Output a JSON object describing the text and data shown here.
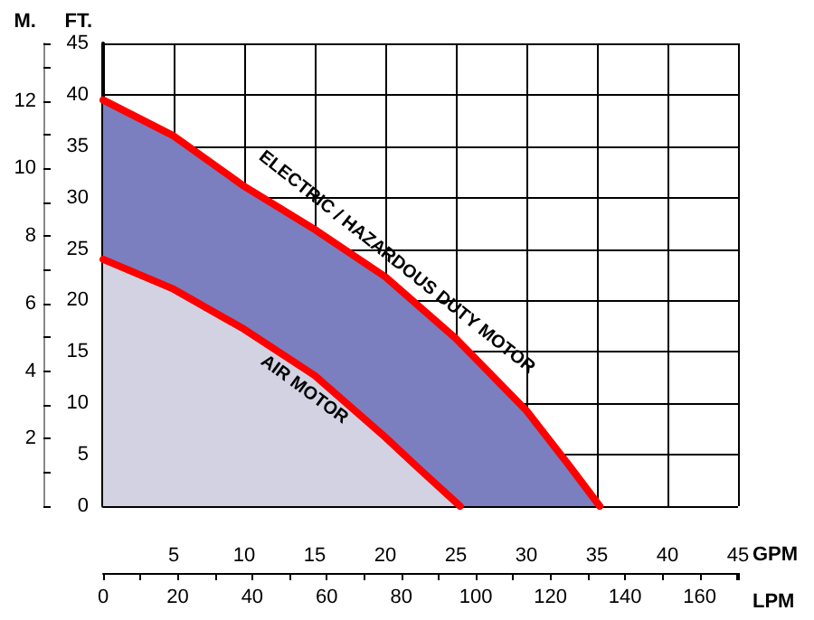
{
  "chart_data": {
    "type": "area",
    "xlabel": "GPM",
    "ylabel": "FT.",
    "y2label": "M.",
    "x2label": "LPM",
    "series": [
      {
        "name": "ELECTRIC / HAZARDOUS DUTY MOTOR",
        "color": "#7b7fbf",
        "x": [
          0,
          5,
          10,
          15,
          20,
          25,
          30,
          33,
          35.2
        ],
        "values": [
          39.5,
          36,
          31.1,
          26.9,
          22.3,
          16.3,
          9.3,
          4,
          0
        ]
      },
      {
        "name": "AIR MOTOR",
        "color": "#d2d2e2",
        "x": [
          0,
          5,
          10,
          15,
          20,
          22.5,
          25.3
        ],
        "values": [
          24,
          21.1,
          17.2,
          12.7,
          6.7,
          3.5,
          0
        ]
      }
    ],
    "xlim": [
      0,
      45
    ],
    "xticks": [
      {
        "value": 0,
        "label": null
      },
      5,
      10,
      15,
      20,
      25,
      30,
      35,
      40,
      45
    ],
    "ylim": [
      0,
      45
    ],
    "yticks": [
      0,
      5,
      10,
      15,
      20,
      25,
      30,
      35,
      40,
      45
    ],
    "y2lim": [
      0,
      13.7
    ],
    "y2ticks": [
      {
        "value": 0,
        "label": null
      },
      2,
      4,
      6,
      8,
      10,
      12
    ],
    "x2lim": [
      0,
      170.3
    ],
    "x2ticks": [
      0,
      20,
      40,
      60,
      80,
      100,
      120,
      140,
      160
    ],
    "grid": true,
    "legend": false,
    "marker": "none",
    "line_style": "solid"
  }
}
